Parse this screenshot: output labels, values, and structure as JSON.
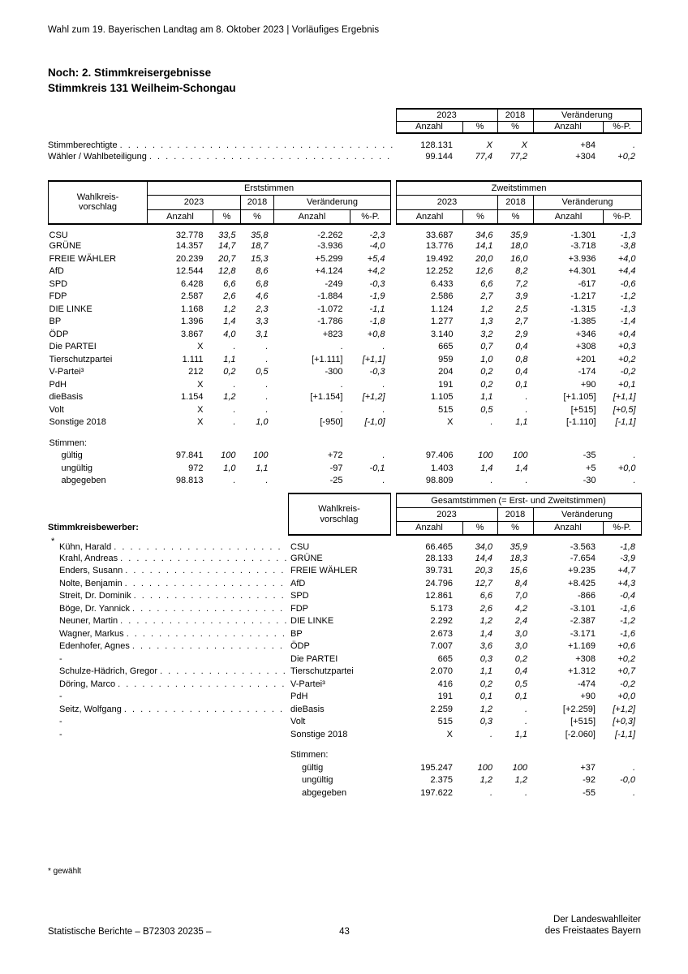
{
  "page_header": "Wahl zum 19. Bayerischen Landtag am 8. Oktober 2023 | Vorläufiges Ergebnis",
  "title": {
    "line1": "Noch: 2. Stimmkreisergebnisse",
    "line2": "Stimmkreis 131 Weilheim-Schongau"
  },
  "labels": {
    "year2023": "2023",
    "year2018": "2018",
    "change": "Veränderung",
    "anzahl": "Anzahl",
    "pct": "%",
    "pctp": "%-P.",
    "wkv1": "Wahlkreis-",
    "wkv2": "vorschlag",
    "erststimmen": "Erststimmen",
    "zweitstimmen": "Zweitstimmen",
    "gesamtstimmen": "Gesamtstimmen (= Erst- und Zweitstimmen)",
    "stimmen": "Stimmen:",
    "stimmkreisbewerber": "Stimmkreisbewerber:"
  },
  "summary_rows": [
    {
      "label": "Stimmberechtigte",
      "values": [
        "128.131",
        "X",
        "X",
        "+84",
        "."
      ]
    },
    {
      "label": "Wähler / Wahlbeteiligung",
      "values": [
        "99.144",
        "77,4",
        "77,2",
        "+304",
        "+0,2"
      ]
    }
  ],
  "party_rows": [
    {
      "label": "CSU",
      "erst": [
        "32.778",
        "33,5",
        "35,8",
        "-2.262",
        "-2,3"
      ],
      "zweit": [
        "33.687",
        "34,6",
        "35,9",
        "-1.301",
        "-1,3"
      ]
    },
    {
      "label": "GRÜNE",
      "erst": [
        "14.357",
        "14,7",
        "18,7",
        "-3.936",
        "-4,0"
      ],
      "zweit": [
        "13.776",
        "14,1",
        "18,0",
        "-3.718",
        "-3,8"
      ]
    },
    {
      "label": "FREIE WÄHLER",
      "erst": [
        "20.239",
        "20,7",
        "15,3",
        "+5.299",
        "+5,4"
      ],
      "zweit": [
        "19.492",
        "20,0",
        "16,0",
        "+3.936",
        "+4,0"
      ]
    },
    {
      "label": "AfD",
      "erst": [
        "12.544",
        "12,8",
        "8,6",
        "+4.124",
        "+4,2"
      ],
      "zweit": [
        "12.252",
        "12,6",
        "8,2",
        "+4.301",
        "+4,4"
      ]
    },
    {
      "label": "SPD",
      "erst": [
        "6.428",
        "6,6",
        "6,8",
        "-249",
        "-0,3"
      ],
      "zweit": [
        "6.433",
        "6,6",
        "7,2",
        "-617",
        "-0,6"
      ]
    },
    {
      "label": "FDP",
      "erst": [
        "2.587",
        "2,6",
        "4,6",
        "-1.884",
        "-1,9"
      ],
      "zweit": [
        "2.586",
        "2,7",
        "3,9",
        "-1.217",
        "-1,2"
      ]
    },
    {
      "label": "DIE LINKE",
      "erst": [
        "1.168",
        "1,2",
        "2,3",
        "-1.072",
        "-1,1"
      ],
      "zweit": [
        "1.124",
        "1,2",
        "2,5",
        "-1.315",
        "-1,3"
      ]
    },
    {
      "label": "BP",
      "erst": [
        "1.396",
        "1,4",
        "3,3",
        "-1.786",
        "-1,8"
      ],
      "zweit": [
        "1.277",
        "1,3",
        "2,7",
        "-1.385",
        "-1,4"
      ]
    },
    {
      "label": "ÖDP",
      "erst": [
        "3.867",
        "4,0",
        "3,1",
        "+823",
        "+0,8"
      ],
      "zweit": [
        "3.140",
        "3,2",
        "2,9",
        "+346",
        "+0,4"
      ]
    },
    {
      "label": "Die PARTEI",
      "erst": [
        "X",
        ".",
        ".",
        ".",
        "."
      ],
      "zweit": [
        "665",
        "0,7",
        "0,4",
        "+308",
        "+0,3"
      ]
    },
    {
      "label": "Tierschutzpartei",
      "erst": [
        "1.111",
        "1,1",
        ".",
        "[+1.111]",
        "[+1,1]"
      ],
      "zweit": [
        "959",
        "1,0",
        "0,8",
        "+201",
        "+0,2"
      ]
    },
    {
      "label": "V-Partei³",
      "erst": [
        "212",
        "0,2",
        "0,5",
        "-300",
        "-0,3"
      ],
      "zweit": [
        "204",
        "0,2",
        "0,4",
        "-174",
        "-0,2"
      ]
    },
    {
      "label": "PdH",
      "erst": [
        "X",
        ".",
        ".",
        ".",
        "."
      ],
      "zweit": [
        "191",
        "0,2",
        "0,1",
        "+90",
        "+0,1"
      ]
    },
    {
      "label": "dieBasis",
      "erst": [
        "1.154",
        "1,2",
        ".",
        "[+1.154]",
        "[+1,2]"
      ],
      "zweit": [
        "1.105",
        "1,1",
        ".",
        "[+1.105]",
        "[+1,1]"
      ]
    },
    {
      "label": "Volt",
      "erst": [
        "X",
        ".",
        ".",
        ".",
        "."
      ],
      "zweit": [
        "515",
        "0,5",
        ".",
        "[+515]",
        "[+0,5]"
      ]
    },
    {
      "label": "Sonstige 2018",
      "erst": [
        "X",
        ".",
        "1,0",
        "[-950]",
        "[-1,0]"
      ],
      "zweit": [
        "X",
        ".",
        "1,1",
        "[-1.110]",
        "[-1,1]"
      ]
    }
  ],
  "stimmen_rows_main": [
    {
      "label": "gültig",
      "erst": [
        "97.841",
        "100",
        "100",
        "+72",
        "."
      ],
      "zweit": [
        "97.406",
        "100",
        "100",
        "-35",
        "."
      ]
    },
    {
      "label": "ungültig",
      "erst": [
        "972",
        "1,0",
        "1,1",
        "-97",
        "-0,1"
      ],
      "zweit": [
        "1.403",
        "1,4",
        "1,4",
        "+5",
        "+0,0"
      ]
    },
    {
      "label": "abgegeben",
      "erst": [
        "98.813",
        ".",
        ".",
        "-25",
        "."
      ],
      "zweit": [
        "98.809",
        ".",
        ".",
        "-30",
        "."
      ]
    }
  ],
  "candidate_rows": [
    {
      "mark": "*",
      "name": "Kühn, Harald",
      "party": "CSU",
      "leader": true,
      "values": [
        "66.465",
        "34,0",
        "35,9",
        "-3.563",
        "-1,8"
      ]
    },
    {
      "mark": "",
      "name": "Krahl, Andreas",
      "party": "GRÜNE",
      "leader": true,
      "values": [
        "28.133",
        "14,4",
        "18,3",
        "-7.654",
        "-3,9"
      ]
    },
    {
      "mark": "",
      "name": "Enders, Susann",
      "party": "FREIE WÄHLER",
      "leader": true,
      "values": [
        "39.731",
        "20,3",
        "15,6",
        "+9.235",
        "+4,7"
      ]
    },
    {
      "mark": "",
      "name": "Nolte, Benjamin",
      "party": "AfD",
      "leader": true,
      "values": [
        "24.796",
        "12,7",
        "8,4",
        "+8.425",
        "+4,3"
      ]
    },
    {
      "mark": "",
      "name": "Streit, Dr. Dominik",
      "party": "SPD",
      "leader": true,
      "values": [
        "12.861",
        "6,6",
        "7,0",
        "-866",
        "-0,4"
      ]
    },
    {
      "mark": "",
      "name": "Böge, Dr. Yannick",
      "party": "FDP",
      "leader": true,
      "values": [
        "5.173",
        "2,6",
        "4,2",
        "-3.101",
        "-1,6"
      ]
    },
    {
      "mark": "",
      "name": "Neuner, Martin",
      "party": "DIE LINKE",
      "leader": true,
      "values": [
        "2.292",
        "1,2",
        "2,4",
        "-2.387",
        "-1,2"
      ]
    },
    {
      "mark": "",
      "name": "Wagner, Markus",
      "party": "BP",
      "leader": true,
      "values": [
        "2.673",
        "1,4",
        "3,0",
        "-3.171",
        "-1,6"
      ]
    },
    {
      "mark": "",
      "name": "Edenhofer, Agnes",
      "party": "ÖDP",
      "leader": true,
      "values": [
        "7.007",
        "3,6",
        "3,0",
        "+1.169",
        "+0,6"
      ]
    },
    {
      "mark": "",
      "name": "-",
      "party": "Die PARTEI",
      "leader": false,
      "values": [
        "665",
        "0,3",
        "0,2",
        "+308",
        "+0,2"
      ]
    },
    {
      "mark": "",
      "name": "Schulze-Hädrich, Gregor",
      "party": "Tierschutzpartei",
      "leader": true,
      "values": [
        "2.070",
        "1,1",
        "0,4",
        "+1.312",
        "+0,7"
      ]
    },
    {
      "mark": "",
      "name": "Döring, Marco",
      "party": "V-Partei³",
      "leader": true,
      "values": [
        "416",
        "0,2",
        "0,5",
        "-474",
        "-0,2"
      ]
    },
    {
      "mark": "",
      "name": "-",
      "party": "PdH",
      "leader": false,
      "values": [
        "191",
        "0,1",
        "0,1",
        "+90",
        "+0,0"
      ]
    },
    {
      "mark": "",
      "name": "Seitz, Wolfgang",
      "party": "dieBasis",
      "leader": true,
      "values": [
        "2.259",
        "1,2",
        ".",
        "[+2.259]",
        "[+1,2]"
      ]
    },
    {
      "mark": "",
      "name": "-",
      "party": "Volt",
      "leader": false,
      "values": [
        "515",
        "0,3",
        ".",
        "[+515]",
        "[+0,3]"
      ]
    },
    {
      "mark": "",
      "name": "-",
      "party": "Sonstige 2018",
      "leader": false,
      "values": [
        "X",
        ".",
        "1,1",
        "[-2.060]",
        "[-1,1]"
      ]
    }
  ],
  "stimmen_rows_gesamt": [
    {
      "label": "gültig",
      "values": [
        "195.247",
        "100",
        "100",
        "+37",
        "."
      ]
    },
    {
      "label": "ungültig",
      "values": [
        "2.375",
        "1,2",
        "1,2",
        "-92",
        "-0,0"
      ]
    },
    {
      "label": "abgegeben",
      "values": [
        "197.622",
        ".",
        ".",
        "-55",
        "."
      ]
    }
  ],
  "footnote": "* gewählt",
  "footer": {
    "left": "Statistische Berichte – B72303 20235 –",
    "page": "43",
    "right_line1": "Der Landeswahlleiter",
    "right_line2": "des Freistaates Bayern"
  }
}
